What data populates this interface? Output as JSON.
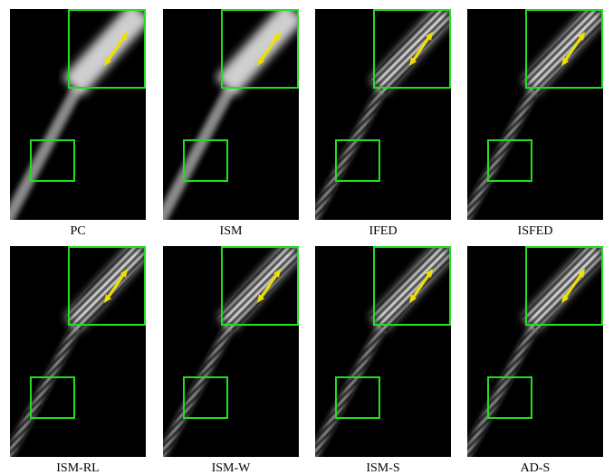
{
  "panels": [
    {
      "label": "PC"
    },
    {
      "label": "ISM"
    },
    {
      "label": "IFED"
    },
    {
      "label": "ISFED"
    },
    {
      "label": "ISM-RL"
    },
    {
      "label": "ISM-W"
    },
    {
      "label": "ISM-S"
    },
    {
      "label": "AD-S"
    }
  ]
}
